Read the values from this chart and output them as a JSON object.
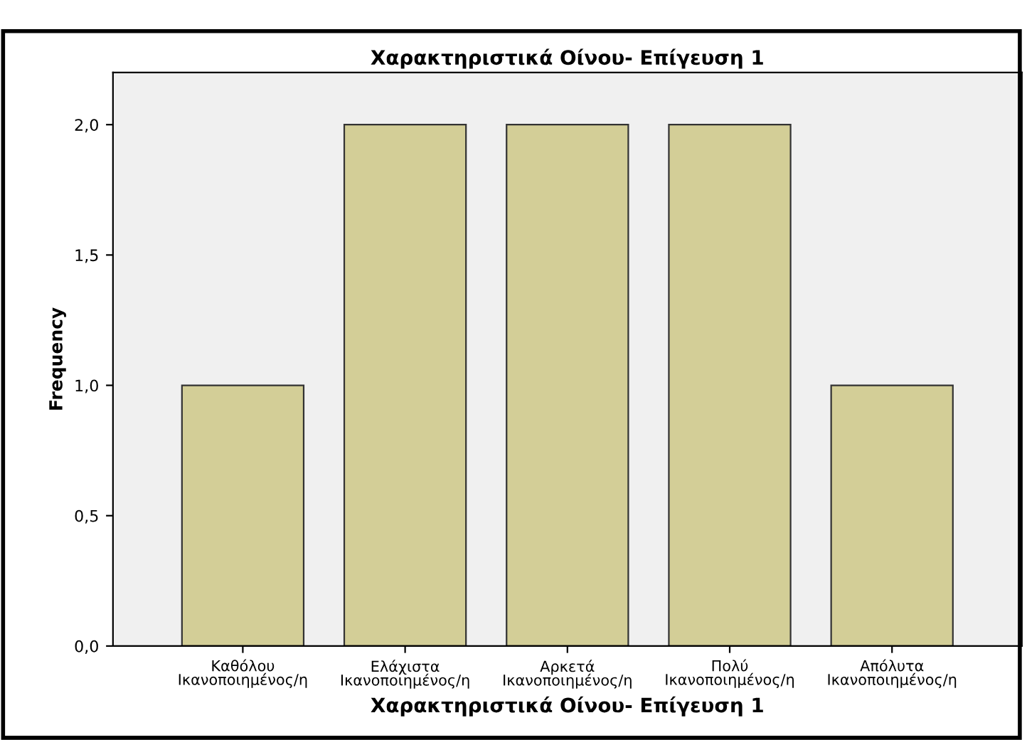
{
  "chart_data": {
    "type": "bar",
    "title": "Χαρακτηριστικά Οίνου- Επίγευση 1",
    "xlabel": "Χαρακτηριστικά Οίνου- Επίγευση 1",
    "ylabel": "Frequency",
    "categories": [
      "Καθόλου\nΙκανοποιημένος/η",
      "Ελάχιστα\nΙκανοποιημένος/η",
      "Αρκετά\nΙκανοποιημένος/η",
      "Πολύ\nΙκανοποιημένος/η",
      "Απόλυτα\nΙκανοποιημένος/η"
    ],
    "values": [
      1,
      2,
      2,
      2,
      1
    ],
    "color": "#d3ce97",
    "ylim": [
      0,
      2.2
    ],
    "yticks": [
      {
        "value": 0,
        "label": "0,0"
      },
      {
        "value": 0.5,
        "label": "0,5"
      },
      {
        "value": 1,
        "label": "1,0"
      },
      {
        "value": 1.5,
        "label": "1,5"
      },
      {
        "value": 2,
        "label": "2,0"
      }
    ],
    "grid": false
  }
}
